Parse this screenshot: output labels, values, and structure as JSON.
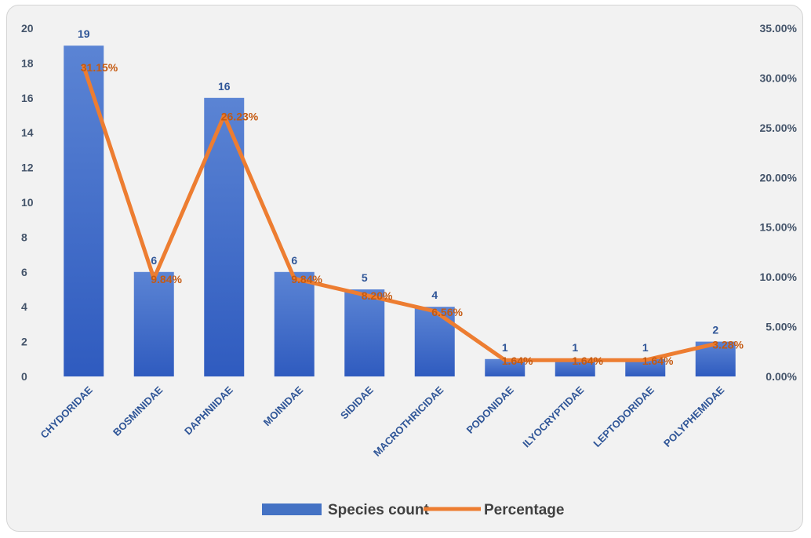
{
  "chart_data": {
    "type": "bar",
    "categories": [
      "CHYDORIDAE",
      "BOSMINIDAE",
      "DAPHNIIDAE",
      "MOINIDAE",
      "SIDIDAE",
      "MACROTHRICIDAE",
      "PODONIDAE",
      "ILYOCRYPTIDAE",
      "LEPTODORIDAE",
      "POLYPHEMIDAE"
    ],
    "series": [
      {
        "name": "Species count",
        "type": "bar",
        "axis": "left",
        "color": "#4472c4",
        "values": [
          19,
          6,
          16,
          6,
          5,
          4,
          1,
          1,
          1,
          2
        ],
        "labels": [
          "19",
          "6",
          "16",
          "6",
          "5",
          "4",
          "1",
          "1",
          "1",
          "2"
        ]
      },
      {
        "name": "Percentage",
        "type": "line",
        "axis": "right",
        "color": "#ed7d31",
        "values": [
          31.15,
          9.84,
          26.23,
          9.84,
          8.2,
          6.56,
          1.64,
          1.64,
          1.64,
          3.28
        ],
        "labels": [
          "31.15%",
          "9.84%",
          "26.23%",
          "9.84%",
          "8.20%",
          "6.56%",
          "1.64%",
          "1.64%",
          "1.64%",
          "3.28%"
        ]
      }
    ],
    "y_left": {
      "min": 0,
      "max": 20,
      "step": 2,
      "ticks": [
        "0",
        "2",
        "4",
        "6",
        "8",
        "10",
        "12",
        "14",
        "16",
        "18",
        "20"
      ]
    },
    "y_right": {
      "min": 0,
      "max": 35,
      "step": 5,
      "ticks": [
        "0.00%",
        "5.00%",
        "10.00%",
        "15.00%",
        "20.00%",
        "25.00%",
        "30.00%",
        "35.00%"
      ]
    },
    "grid": false,
    "legend_position": "bottom",
    "title": "",
    "xlabel": "",
    "ylabel": ""
  }
}
